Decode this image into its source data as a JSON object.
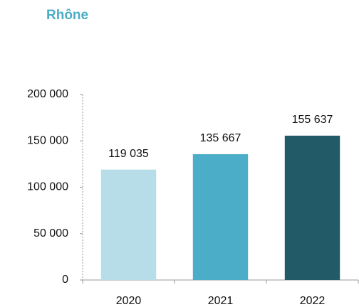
{
  "chart_data": {
    "type": "bar",
    "title": "Rhône",
    "categories": [
      "2020",
      "2021",
      "2022"
    ],
    "values": [
      119035,
      135667,
      155637
    ],
    "value_labels": [
      "119 035",
      "135 667",
      "155 637"
    ],
    "colors": [
      "#b7dde8",
      "#4badc7",
      "#235a67"
    ],
    "ylim": [
      0,
      200000
    ],
    "yticks": [
      0,
      {
        "value": 50000,
        "label": "50 000"
      },
      {
        "value": 100000,
        "label": "100 000"
      },
      {
        "value": 150000,
        "label": "150 000"
      },
      {
        "value": 200000,
        "label": "200 000"
      }
    ],
    "grid": false
  }
}
